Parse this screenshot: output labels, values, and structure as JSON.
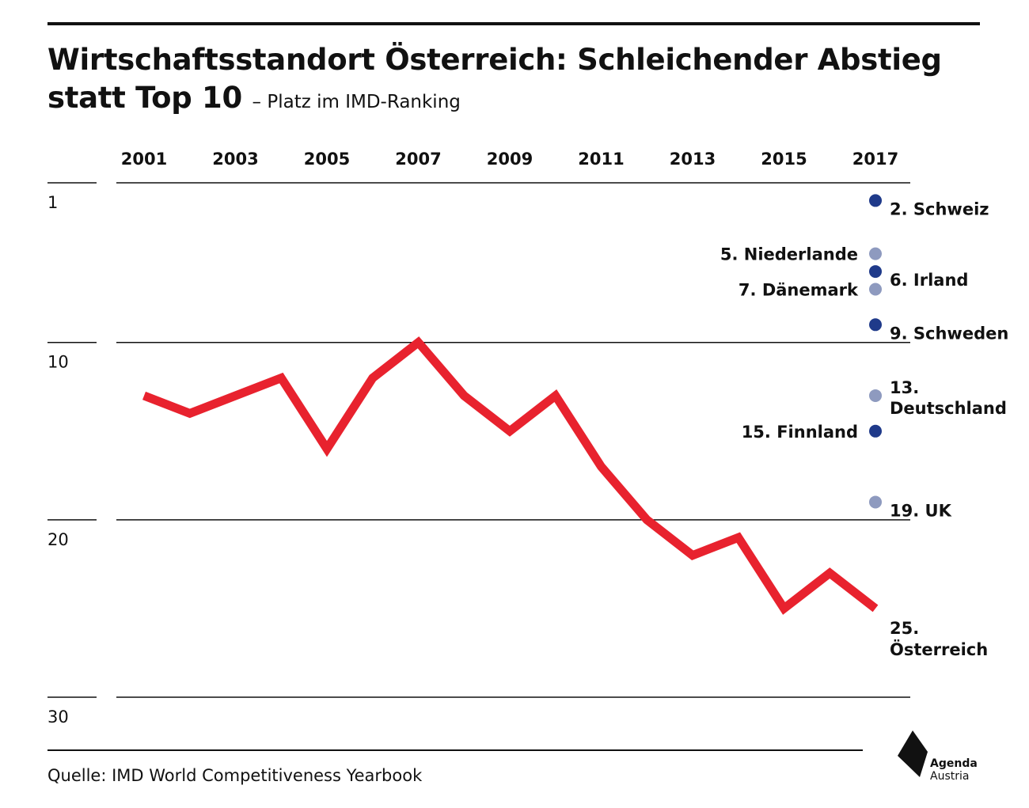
{
  "header": {
    "title": "Wirtschaftsstandort Österreich: Schleichender Abstieg statt Top 10",
    "subtitle": "– Platz im IMD-Ranking"
  },
  "chart_data": {
    "type": "line",
    "x_ticks": [
      "2001",
      "2003",
      "2005",
      "2007",
      "2009",
      "2011",
      "2013",
      "2015",
      "2017"
    ],
    "y_ticks": [
      "1",
      "10",
      "20",
      "30"
    ],
    "ylim": [
      1,
      30
    ],
    "y_inverted": true,
    "xlim": [
      2001,
      2017
    ],
    "series": [
      {
        "name": "Österreich",
        "color": "#e8222e",
        "x": [
          2001,
          2002,
          2003,
          2004,
          2005,
          2006,
          2007,
          2008,
          2009,
          2010,
          2011,
          2012,
          2013,
          2014,
          2015,
          2016,
          2017
        ],
        "values": [
          13,
          14,
          13,
          12,
          16,
          12,
          10,
          13,
          15,
          13,
          17,
          20,
          22,
          21,
          25,
          23,
          25
        ]
      }
    ],
    "points_2017": [
      {
        "label": "2. Schweiz",
        "rank": 2,
        "color": "#1f3a8a",
        "side": "right"
      },
      {
        "label": "5. Niederlande",
        "rank": 5,
        "color": "#8e9abf",
        "side": "left"
      },
      {
        "label": "6. Irland",
        "rank": 6,
        "color": "#1f3a8a",
        "side": "right"
      },
      {
        "label": "7. Dänemark",
        "rank": 7,
        "color": "#8e9abf",
        "side": "left"
      },
      {
        "label": "9. Schweden",
        "rank": 9,
        "color": "#1f3a8a",
        "side": "right"
      },
      {
        "label": "13. Deutschland",
        "rank": 13,
        "color": "#8e9abf",
        "side": "right"
      },
      {
        "label": "15. Finnland",
        "rank": 15,
        "color": "#1f3a8a",
        "side": "left"
      },
      {
        "label": "19. UK",
        "rank": 19,
        "color": "#8e9abf",
        "side": "right"
      }
    ],
    "end_label": "25. Österreich",
    "grid": true
  },
  "footer": {
    "source": "Quelle: IMD World Competitiveness Yearbook",
    "logo_line1": "Agenda",
    "logo_line2": "Austria"
  }
}
